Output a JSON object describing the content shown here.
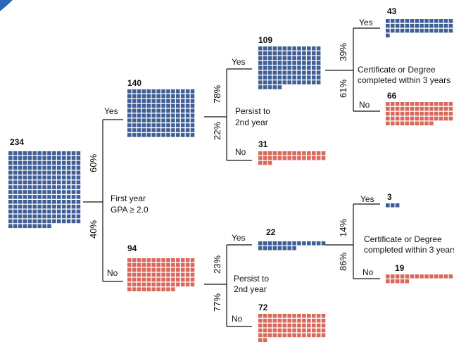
{
  "colors": {
    "pass": "#3F5F96",
    "fail": "#D9695C",
    "accent": "#2E67B8"
  },
  "questions": {
    "gpa": [
      "First year",
      "GPA ≥ 2.0"
    ],
    "persist_top": [
      "Persist to",
      "2nd year"
    ],
    "persist_bottom": [
      "Persist to",
      "2nd year"
    ],
    "complete_top": [
      "Certificate or Degree",
      "completed within 3 years"
    ],
    "complete_bottom": [
      "Certificate or Degree",
      "completed within 3 years"
    ]
  },
  "branches": {
    "gpa": {
      "yes": "Yes",
      "no": "No",
      "yes_pct": "60%",
      "no_pct": "40%"
    },
    "persist_top": {
      "yes": "Yes",
      "no": "No",
      "yes_pct": "78%",
      "no_pct": "22%"
    },
    "persist_bottom": {
      "yes": "Yes",
      "no": "No",
      "yes_pct": "23%",
      "no_pct": "77%"
    },
    "complete_top": {
      "yes": "Yes",
      "no": "No",
      "yes_pct": "39%",
      "no_pct": "61%"
    },
    "complete_bottom": {
      "yes": "Yes",
      "no": "No",
      "yes_pct": "14%",
      "no_pct": "86%"
    }
  },
  "nodes": {
    "total": {
      "count": 234,
      "label": "234",
      "outcome": "pass"
    },
    "gpa_yes": {
      "count": 140,
      "label": "140",
      "outcome": "pass"
    },
    "gpa_no": {
      "count": 94,
      "label": "94",
      "outcome": "fail"
    },
    "persist_top_yes": {
      "count": 109,
      "label": "109",
      "outcome": "pass"
    },
    "persist_top_no": {
      "count": 31,
      "label": "31",
      "outcome": "fail"
    },
    "persist_bottom_yes": {
      "count": 22,
      "label": "22",
      "outcome": "pass"
    },
    "persist_bottom_no": {
      "count": 72,
      "label": "72",
      "outcome": "fail"
    },
    "complete_top_yes": {
      "count": 43,
      "label": "43",
      "outcome": "pass"
    },
    "complete_top_no": {
      "count": 66,
      "label": "66",
      "outcome": "fail"
    },
    "complete_bottom_yes": {
      "count": 3,
      "label": "3",
      "outcome": "pass"
    },
    "complete_bottom_no": {
      "count": 19,
      "label": "19",
      "outcome": "fail"
    }
  }
}
